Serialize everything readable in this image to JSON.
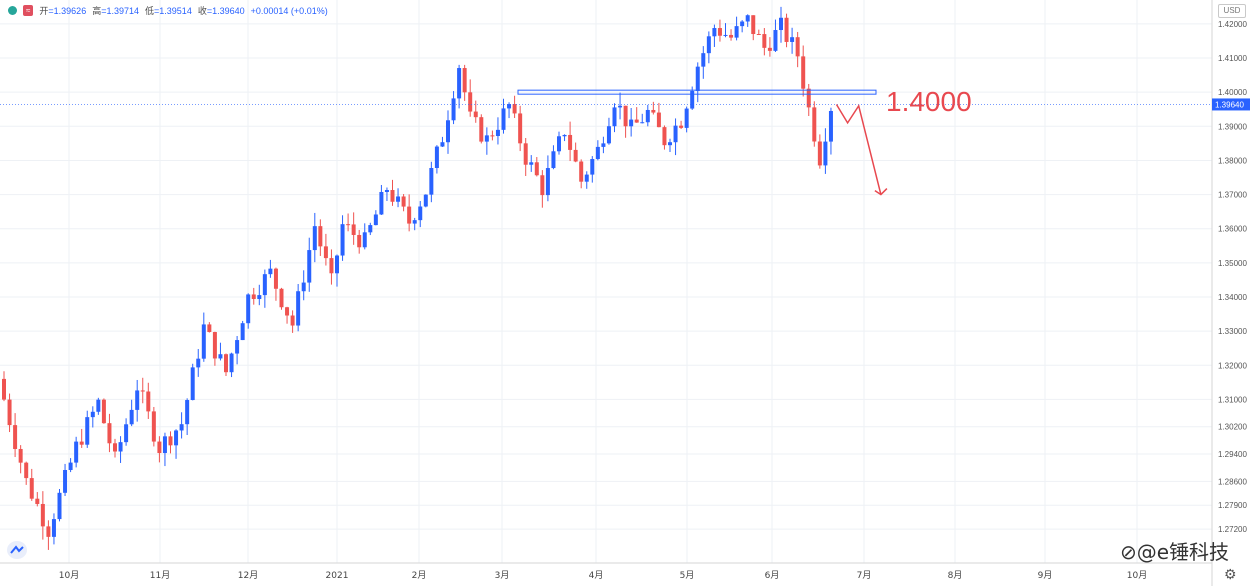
{
  "header": {
    "badge": "≈",
    "open_label": "开",
    "open": "=1.39626",
    "high_label": "高",
    "high": "=1.39714",
    "low_label": "低",
    "low": "=1.39514",
    "close_label": "收",
    "close": "=1.39640",
    "change": "+0.00014 (+0.01%)"
  },
  "currency_button": "USD",
  "annotation_label": "1.4000",
  "watermark": "⊘@e锤科技",
  "settings_icon": "gear-icon",
  "colors": {
    "up": "#2962ff",
    "down": "#ef5350",
    "annotation": "#e8484f",
    "line": "#2962ff"
  },
  "chart_data": {
    "type": "candlestick",
    "instrument_quote": "USD",
    "y_axis": {
      "min": 1.265,
      "max": 1.427,
      "ticks": [
        "1.42000",
        "1.41000",
        "1.40000",
        "1.39000",
        "1.38000",
        "1.37000",
        "1.36000",
        "1.35000",
        "1.34000",
        "1.33000",
        "1.32000",
        "1.31000",
        "1.30200",
        "1.29400",
        "1.28600",
        "1.27900",
        "1.27200"
      ]
    },
    "x_axis": {
      "labels": [
        "10月",
        "11月",
        "12月",
        "2021",
        "2月",
        "3月",
        "4月",
        "5月",
        "6月",
        "7月",
        "8月",
        "9月",
        "10月"
      ]
    },
    "last_price": "1.39640",
    "resistance_level": 1.4,
    "series_start_close": 1.316,
    "weekly_path": [
      [
        0,
        1.316
      ],
      [
        5,
        1.286
      ],
      [
        9,
        1.272
      ],
      [
        14,
        1.296
      ],
      [
        18,
        1.309
      ],
      [
        21,
        1.292
      ],
      [
        25,
        1.314
      ],
      [
        29,
        1.296
      ],
      [
        33,
        1.303
      ],
      [
        37,
        1.331
      ],
      [
        41,
        1.318
      ],
      [
        45,
        1.34
      ],
      [
        49,
        1.347
      ],
      [
        53,
        1.332
      ],
      [
        57,
        1.361
      ],
      [
        60,
        1.344
      ],
      [
        62,
        1.361
      ],
      [
        66,
        1.356
      ],
      [
        70,
        1.372
      ],
      [
        74,
        1.362
      ],
      [
        77,
        1.371
      ],
      [
        80,
        1.387
      ],
      [
        83,
        1.408
      ],
      [
        85,
        1.392
      ],
      [
        88,
        1.386
      ],
      [
        92,
        1.396
      ],
      [
        95,
        1.381
      ],
      [
        98,
        1.372
      ],
      [
        102,
        1.389
      ],
      [
        105,
        1.374
      ],
      [
        108,
        1.383
      ],
      [
        111,
        1.398
      ],
      [
        114,
        1.389
      ],
      [
        117,
        1.394
      ],
      [
        120,
        1.386
      ],
      [
        123,
        1.392
      ],
      [
        126,
        1.408
      ],
      [
        129,
        1.419
      ],
      [
        132,
        1.416
      ],
      [
        135,
        1.421
      ],
      [
        138,
        1.413
      ],
      [
        141,
        1.419
      ],
      [
        144,
        1.411
      ],
      [
        146,
        1.395
      ],
      [
        148,
        1.381
      ],
      [
        150,
        1.396
      ]
    ],
    "projection": [
      [
        150,
        1.3964
      ],
      [
        152,
        1.391
      ],
      [
        154,
        1.396
      ],
      [
        158,
        1.37
      ]
    ]
  }
}
